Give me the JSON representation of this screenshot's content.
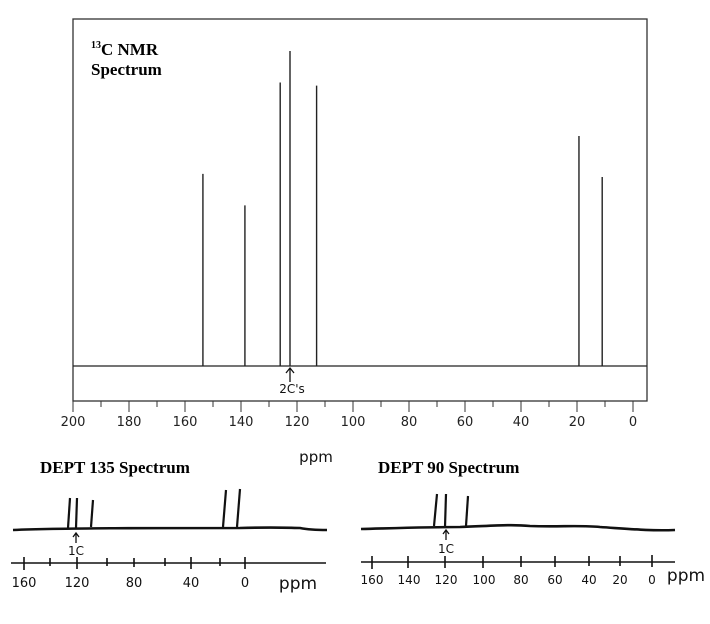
{
  "main_spectrum": {
    "title_sup": "13",
    "title_line1": "C NMR",
    "title_line2": "Spectrum",
    "annotation": "2C's",
    "xlabel": "ppm",
    "tick_labels": [
      "200",
      "180",
      "160",
      "140",
      "120",
      "100",
      "80",
      "60",
      "40",
      "20",
      "0"
    ]
  },
  "dept135": {
    "title": "DEPT 135 Spectrum",
    "annotation": "1C",
    "xlabel": "ppm",
    "tick_labels": [
      "160",
      "120",
      "80",
      "40",
      "0"
    ]
  },
  "dept90": {
    "title": "DEPT 90 Spectrum",
    "annotation": "1C",
    "xlabel": "ppm",
    "tick_labels": [
      "160",
      "140",
      "120",
      "100",
      "80",
      "60",
      "40",
      "20",
      "0"
    ]
  },
  "chart_data": [
    {
      "type": "bar",
      "title": "13C NMR Spectrum",
      "xlabel": "ppm",
      "ylabel": "",
      "xlim": [
        200,
        0
      ],
      "x_reversed": true,
      "xticks": [
        200,
        180,
        160,
        140,
        120,
        100,
        80,
        60,
        40,
        20,
        0
      ],
      "grid": false,
      "peaks_ppm": [
        153.6,
        138.6,
        126.0,
        122.5,
        113.0,
        19.3,
        11.0
      ],
      "relative_heights": [
        0.61,
        0.51,
        0.9,
        1.0,
        0.89,
        0.73,
        0.6
      ],
      "annotations": [
        {
          "x": 122.5,
          "text": "2C's"
        }
      ]
    },
    {
      "type": "bar",
      "title": "DEPT 135 Spectrum",
      "xlabel": "ppm",
      "xlim": [
        165,
        -25
      ],
      "x_reversed": true,
      "xticks": [
        160,
        120,
        80,
        40,
        0
      ],
      "peaks_ppm": [
        126.0,
        122.5,
        113.0,
        19.3,
        11.0
      ],
      "peak_direction": [
        "up",
        "up",
        "up",
        "up",
        "up"
      ],
      "annotations": [
        {
          "x": 122.5,
          "text": "1C"
        }
      ]
    },
    {
      "type": "bar",
      "title": "DEPT 90 Spectrum",
      "xlabel": "ppm",
      "xlim": [
        165,
        -5
      ],
      "x_reversed": true,
      "xticks": [
        160,
        140,
        120,
        100,
        80,
        60,
        40,
        20,
        0
      ],
      "peaks_ppm": [
        126.0,
        122.5,
        113.0
      ],
      "peak_direction": [
        "up",
        "up",
        "up"
      ],
      "annotations": [
        {
          "x": 122.5,
          "text": "1C"
        }
      ]
    }
  ]
}
